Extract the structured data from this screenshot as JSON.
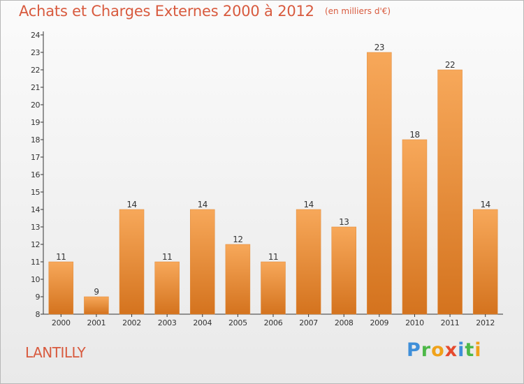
{
  "header": {
    "title": "Achats et Charges Externes 2000 à 2012",
    "subtitle": "(en milliers d'€)"
  },
  "footer": {
    "commune": "LANTILLY",
    "brand_letters": [
      {
        "ch": "P",
        "color": "#3f8fd9"
      },
      {
        "ch": "r",
        "color": "#4db848"
      },
      {
        "ch": "o",
        "color": "#f0a21a"
      },
      {
        "ch": "x",
        "color": "#e64a2e"
      },
      {
        "ch": "i",
        "color": "#3f8fd9"
      },
      {
        "ch": "t",
        "color": "#4db848"
      },
      {
        "ch": "i",
        "color": "#f0a21a"
      }
    ]
  },
  "chart_data": {
    "type": "bar",
    "title": "Achats et Charges Externes 2000 à 2012",
    "subtitle": "(en milliers d'€)",
    "categories": [
      "2000",
      "2001",
      "2002",
      "2003",
      "2004",
      "2005",
      "2006",
      "2007",
      "2008",
      "2009",
      "2010",
      "2011",
      "2012"
    ],
    "values": [
      11,
      9,
      14,
      11,
      14,
      12,
      11,
      14,
      13,
      23,
      18,
      22,
      14
    ],
    "ylim": [
      8,
      24
    ],
    "yticks": [
      8,
      9,
      10,
      11,
      12,
      13,
      14,
      15,
      16,
      17,
      18,
      19,
      20,
      21,
      22,
      23,
      24
    ],
    "grid": false,
    "data_labels": true,
    "colors": {
      "bar_top": "#f7a85a",
      "bar_bottom": "#d4731e",
      "title": "#d85a3e",
      "axis": "#333333"
    }
  }
}
